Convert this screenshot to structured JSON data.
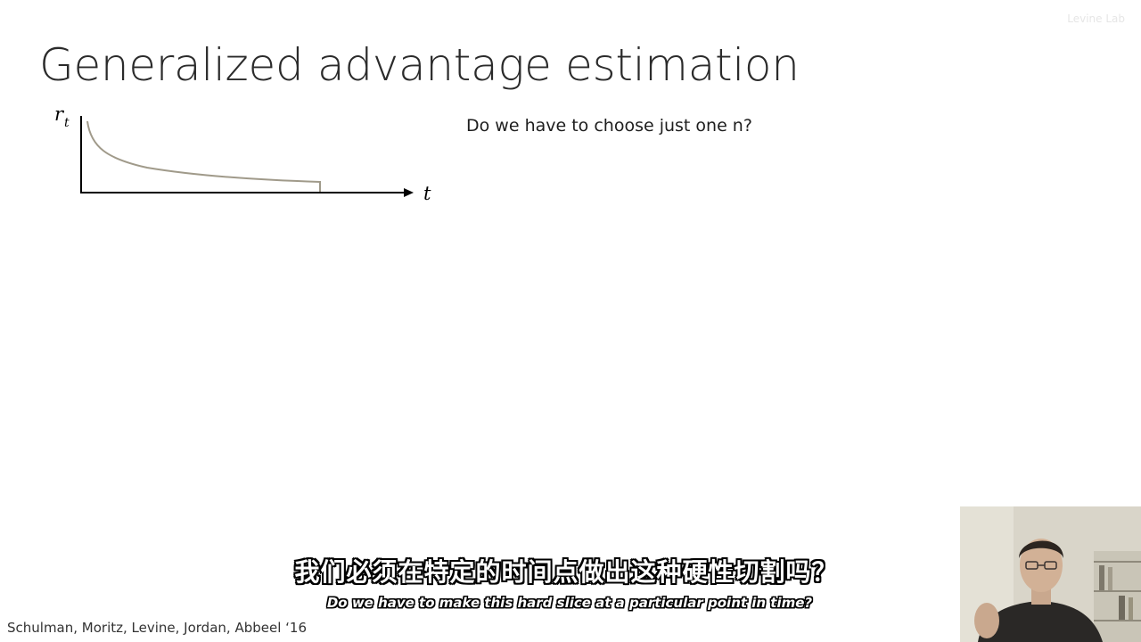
{
  "slide": {
    "title": "Generalized advantage estimation",
    "question": "Do we have to choose just one n?",
    "citation": "Schulman, Moritz, Levine, Jordan, Abbeel ‘16",
    "watermark": "Levine Lab"
  },
  "plot": {
    "y_axis_label": "r",
    "y_axis_subscript": "t",
    "x_axis_label": "t",
    "curve_color": "#a09a8a",
    "axis_color": "#000000"
  },
  "subtitles": {
    "zh": "我们必须在特定的时间点做出这种硬性切割吗？",
    "en": "Do we have to make this hard slice at a particular point in time?"
  }
}
